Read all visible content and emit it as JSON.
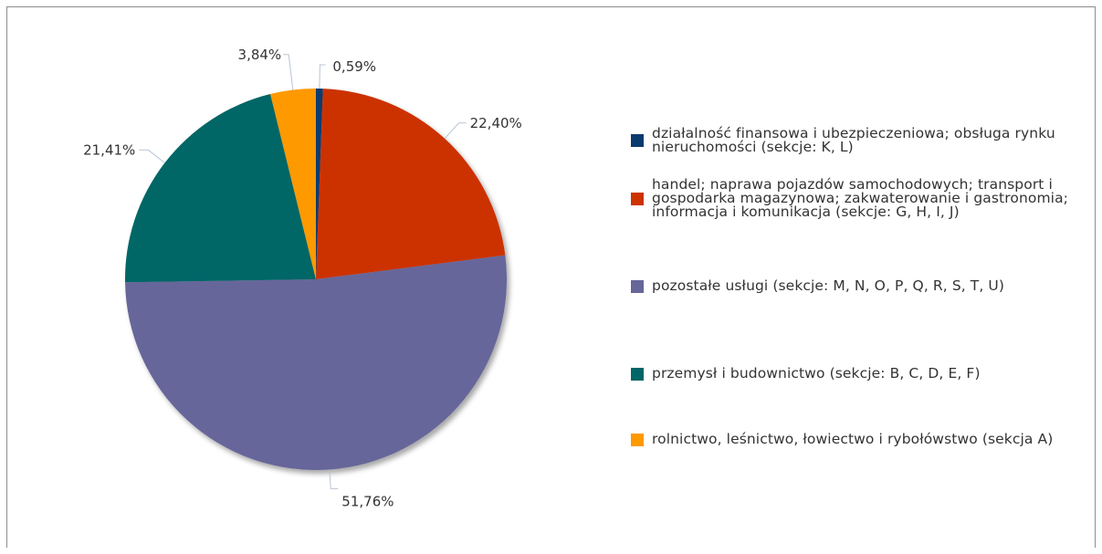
{
  "chart_data": {
    "type": "pie",
    "title": "",
    "slices": [
      {
        "label": "działalność finansowa i ubezpieczeniowa; obsługa rynku nieruchomości (sekcje: K, L)",
        "value": 0.59,
        "value_label": "0,59%",
        "color": "#0b3a6e"
      },
      {
        "label": "handel; naprawa pojazdów samochodowych; transport i gospodarka magazynowa; zakwaterowanie i gastronomia; informacja i komunikacja (sekcje: G, H, I, J)",
        "value": 22.4,
        "value_label": "22,40%",
        "color": "#cc3300"
      },
      {
        "label": "pozostałe usługi (sekcje: M, N, O, P, Q, R, S, T, U)",
        "value": 51.76,
        "value_label": "51,76%",
        "color": "#66669a"
      },
      {
        "label": "przemysł i budownictwo (sekcje: B, C, D, E, F)",
        "value": 21.41,
        "value_label": "21,41%",
        "color": "#006666"
      },
      {
        "label": "rolnictwo, leśnictwo, łowiectwo i rybołówstwo (sekcja A)",
        "value": 3.84,
        "value_label": "3,84%",
        "color": "#ff9900"
      }
    ],
    "legend_position": "right",
    "start_angle_deg": 0,
    "direction": "clockwise"
  }
}
